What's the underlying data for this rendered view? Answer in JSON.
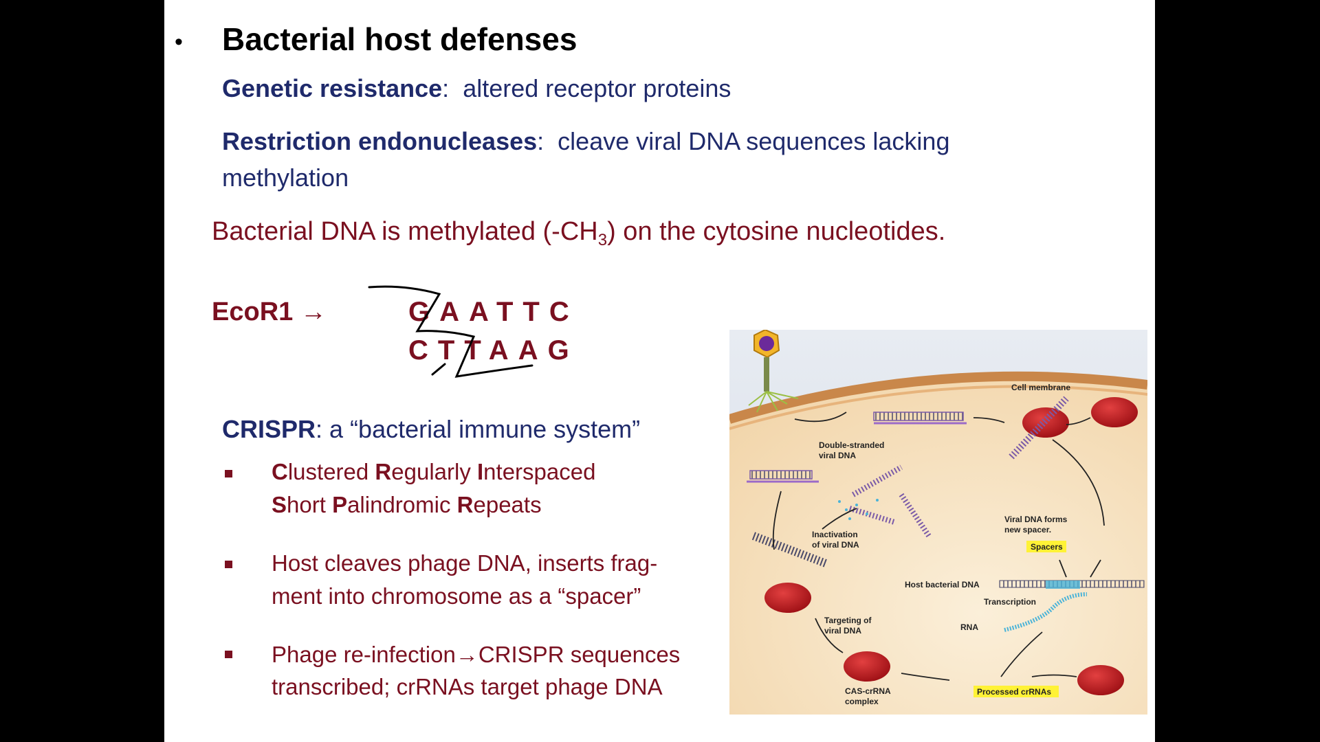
{
  "slide": {
    "bullet": "•",
    "title": "Bacterial host defenses",
    "genetic": {
      "term": "Genetic resistance",
      "colon": ":",
      "text": "altered receptor proteins"
    },
    "restriction": {
      "term": "Restriction endonucleases",
      "colon": ":",
      "text1": "cleave viral DNA sequences lacking",
      "text2": "methylation"
    },
    "methyl": {
      "pre": "Bacterial DNA is methylated (-CH",
      "sub": "3",
      "post": ") on the cytosine nucleotides."
    },
    "ecor1": {
      "label": "EcoR1",
      "arrow": "→",
      "top": [
        "G",
        "A",
        "A",
        "T",
        "T",
        "C"
      ],
      "bottom": [
        "C",
        "T",
        "T",
        "A",
        "A",
        "G"
      ]
    },
    "crispr": {
      "term": "CRISPR",
      "text": ": a “bacterial immune system”",
      "bullets": [
        {
          "lines": [
            [
              {
                "t": "C",
                "b": true
              },
              {
                "t": "lustered ",
                "b": false
              },
              {
                "t": "R",
                "b": true
              },
              {
                "t": "egularly ",
                "b": false
              },
              {
                "t": "I",
                "b": true
              },
              {
                "t": "nterspaced",
                "b": false
              }
            ],
            [
              {
                "t": "S",
                "b": true
              },
              {
                "t": "hort ",
                "b": false
              },
              {
                "t": "P",
                "b": true
              },
              {
                "t": "alindromic ",
                "b": false
              },
              {
                "t": "R",
                "b": true
              },
              {
                "t": "epeats",
                "b": false
              }
            ]
          ]
        },
        {
          "line1": "Host cleaves phage DNA, inserts frag-",
          "line2": "ment into chromosome as a “spacer”"
        },
        {
          "line1": "Phage re-infection→CRISPR sequences",
          "line2": "transcribed; crRNAs target phage DNA"
        }
      ]
    },
    "diagram": {
      "labels": {
        "cell_membrane": "Cell membrane",
        "ds_viral_dna_1": "Double-stranded",
        "ds_viral_dna_2": "viral DNA",
        "viral_dna_forms_1": "Viral DNA forms",
        "viral_dna_forms_2": "new spacer.",
        "spacers": "Spacers",
        "inactivation_1": "Inactivation",
        "inactivation_2": "of viral DNA",
        "host_bacterial_dna": "Host bacterial DNA",
        "transcription": "Transcription",
        "targeting_1": "Targeting of",
        "targeting_2": "viral DNA",
        "rna": "RNA",
        "cas_1": "CAS-crRNA",
        "cas_2": "complex",
        "processed": "Processed crRNAs"
      }
    }
  }
}
